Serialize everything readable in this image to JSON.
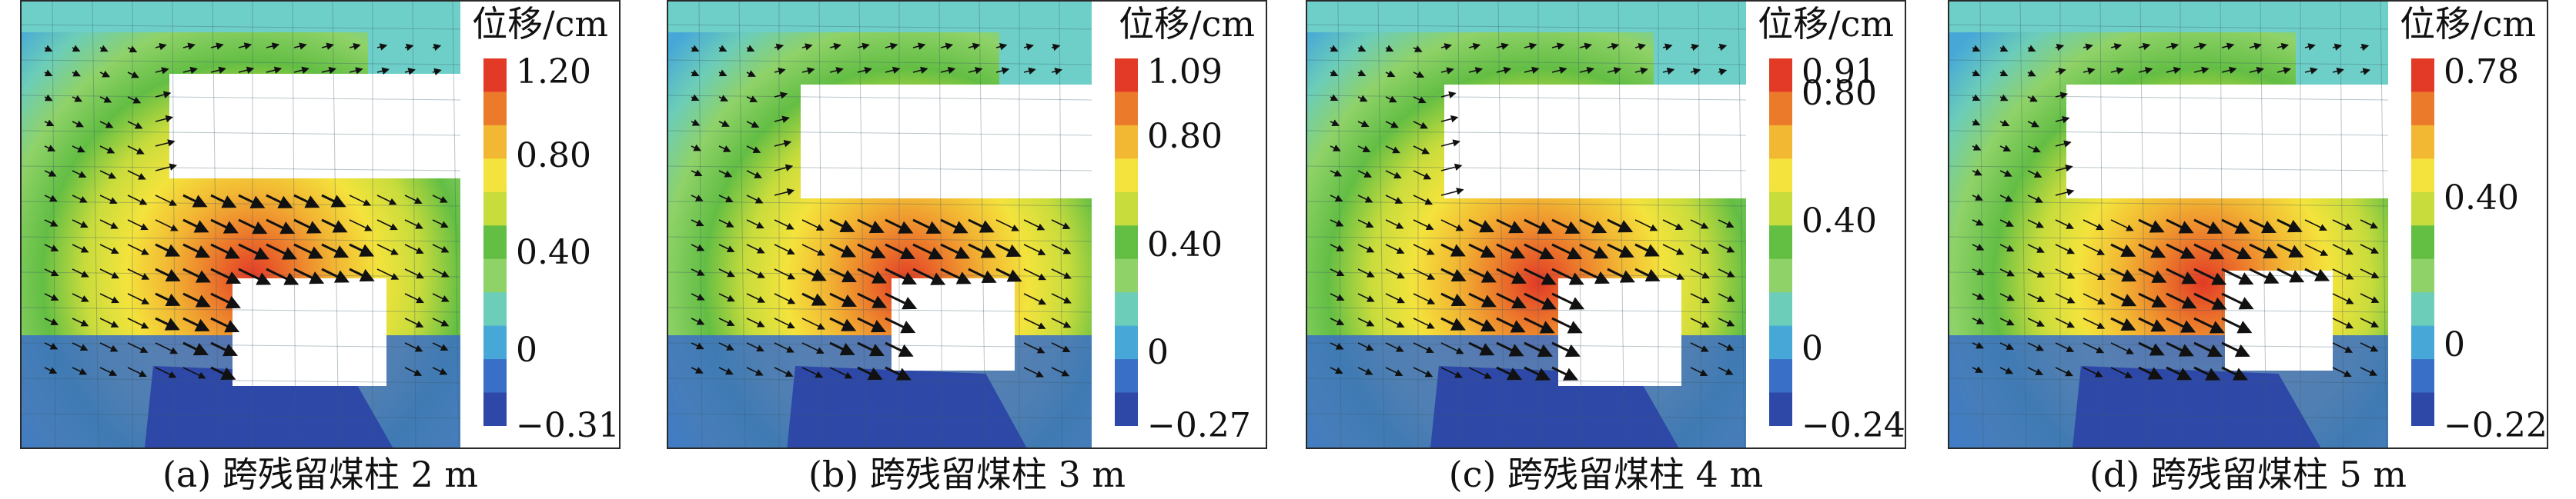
{
  "colors": {
    "stops": [
      "#2e48a8",
      "#3a6fc8",
      "#47a8d8",
      "#6ccdb8",
      "#8fd268",
      "#63be44",
      "#c8dc3c",
      "#f4e33c",
      "#f2b733",
      "#ec7a2b",
      "#e23a26"
    ],
    "mine_top": "#6ecfc9",
    "void": "#ffffff"
  },
  "legend_unit": "位移/cm",
  "panels": [
    {
      "caption": "(a) 跨残留煤柱 2 m",
      "unit": "位移/cm",
      "max": 1.2,
      "min": -0.31,
      "ticks": [
        {
          "v": 1.2,
          "t": "1.20"
        },
        {
          "v": 0.8,
          "t": "0.80"
        },
        {
          "v": 0.4,
          "t": "0.40"
        },
        {
          "v": 0,
          "t": "0"
        },
        {
          "v": -0.31,
          "t": "−0.31"
        }
      ]
    },
    {
      "caption": "(b) 跨残留煤柱 3 m",
      "unit": "位移/cm",
      "max": 1.09,
      "min": -0.27,
      "ticks": [
        {
          "v": 1.09,
          "t": "1.09"
        },
        {
          "v": 0.8,
          "t": "0.80"
        },
        {
          "v": 0.4,
          "t": "0.40"
        },
        {
          "v": 0,
          "t": "0"
        },
        {
          "v": -0.27,
          "t": "−0.27"
        }
      ]
    },
    {
      "caption": "(c) 跨残留煤柱 4 m",
      "unit": "位移/cm",
      "max": 0.91,
      "min": -0.24,
      "ticks": [
        {
          "v": 0.91,
          "t": "0.91"
        },
        {
          "v": 0.8,
          "t": "0.80"
        },
        {
          "v": 0.4,
          "t": "0.40"
        },
        {
          "v": 0,
          "t": "0"
        },
        {
          "v": -0.24,
          "t": "−0.24"
        }
      ]
    },
    {
      "caption": "(d) 跨残留煤柱 5 m",
      "unit": "位移/cm",
      "max": 0.78,
      "min": -0.22,
      "ticks": [
        {
          "v": 0.78,
          "t": "0.78"
        },
        {
          "v": 0.4,
          "t": "0.40"
        },
        {
          "v": 0,
          "t": "0"
        },
        {
          "v": -0.22,
          "t": "−0.22"
        }
      ]
    }
  ]
}
